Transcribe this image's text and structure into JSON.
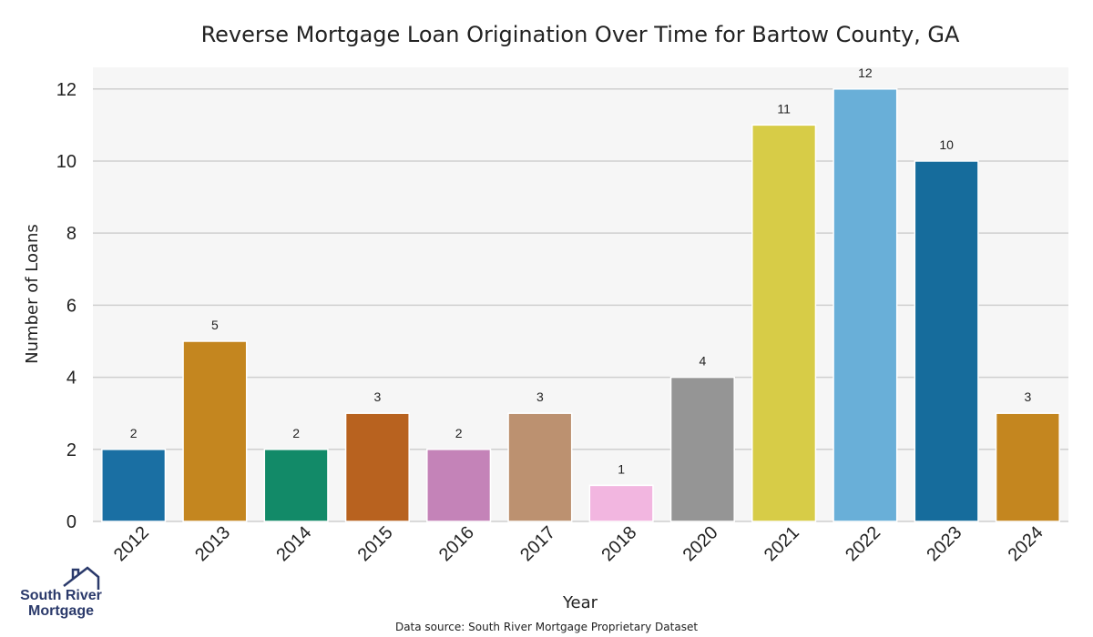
{
  "chart_data": {
    "type": "bar",
    "title": "Reverse Mortgage Loan Origination Over Time for Bartow County, GA",
    "xlabel": "Year",
    "ylabel": "Number of Loans",
    "categories": [
      "2012",
      "2013",
      "2014",
      "2015",
      "2016",
      "2017",
      "2018",
      "2020",
      "2021",
      "2022",
      "2023",
      "2024"
    ],
    "values": [
      2,
      5,
      2,
      3,
      2,
      3,
      1,
      4,
      11,
      12,
      10,
      3
    ],
    "colors": [
      "#1a6fa3",
      "#c4861f",
      "#128a68",
      "#b8621f",
      "#c483b8",
      "#bc9170",
      "#f2b6e0",
      "#959595",
      "#d7cc47",
      "#69afd8",
      "#166c9c",
      "#c4861f"
    ],
    "ylim": [
      0,
      12.6
    ],
    "yticks": [
      0,
      2,
      4,
      6,
      8,
      10,
      12
    ],
    "grid": true,
    "background": "#f6f6f6"
  },
  "source_text": "Data source: South River Mortgage Proprietary Dataset",
  "logo": {
    "line1": "South River",
    "line2": "Mortgage",
    "color": "#2b3a6b"
  }
}
